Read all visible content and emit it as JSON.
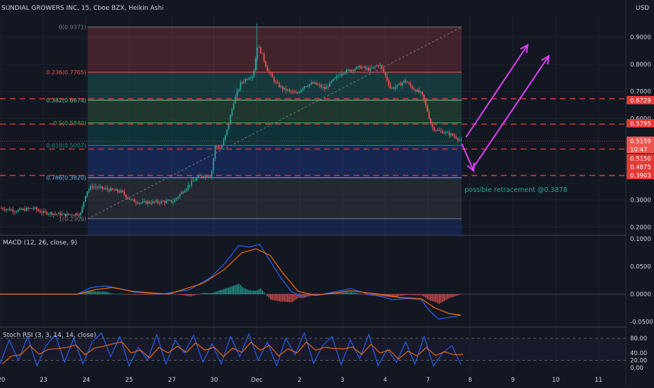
{
  "header": {
    "title": "SUNDIAL GROWERS INC, 15, Cboe BZX, Heikin Ashi",
    "currency": "USD"
  },
  "colors": {
    "background": "#131722",
    "grid": "#1e222d",
    "up": "#26a69a",
    "down": "#ef5350",
    "axis_text": "#d1d4dc",
    "arrow": "#e040fb",
    "dashed_line": "#e53935",
    "macd_line": "#2962ff",
    "signal_line": "#ff6d00",
    "stoch_k": "#2962ff",
    "stoch_d": "#ff6d00"
  },
  "chart_data": [
    {
      "type": "candlestick",
      "panel": "price",
      "price_axis": [
        0.9,
        0.8,
        0.7,
        0.6,
        0.3,
        0.2
      ],
      "date_axis": [
        "20",
        "23",
        "24",
        "25",
        "27",
        "30",
        "Dec",
        "2",
        "3",
        "4",
        "7",
        "8",
        "9",
        "10",
        "11"
      ],
      "fib_levels": [
        {
          "label": "0(0.9371)",
          "value": 0.9371
        },
        {
          "label": "0.236(0.7705)",
          "value": 0.7705
        },
        {
          "label": "0.382(0.6674)",
          "value": 0.6674
        },
        {
          "label": "0.5(0.5840)",
          "value": 0.584
        },
        {
          "label": "0.618(0.5007)",
          "value": 0.5007
        },
        {
          "label": "0.786(0.3820)",
          "value": 0.382
        },
        {
          "label": "1(0.2309)",
          "value": 0.2309
        }
      ],
      "price_tags": [
        {
          "text": "0.6729",
          "value": 0.6729
        },
        {
          "text": "0.5795",
          "value": 0.5795
        },
        {
          "text": "0.5159",
          "value": 0.5159
        },
        {
          "text": "10:47",
          "value": 0.5159
        },
        {
          "text": "0.5150",
          "value": 0.515
        },
        {
          "text": "0.4875",
          "value": 0.4875
        },
        {
          "text": "0.3903",
          "value": 0.3903
        }
      ],
      "annotation": "possible retracement @0.3878",
      "close_path": [
        [
          0,
          0.27
        ],
        [
          22,
          0.26
        ],
        [
          47,
          0.27
        ],
        [
          58,
          0.255
        ],
        [
          92,
          0.245
        ],
        [
          114,
          0.25
        ],
        [
          122,
          0.33
        ],
        [
          130,
          0.35
        ],
        [
          150,
          0.34
        ],
        [
          172,
          0.33
        ],
        [
          185,
          0.3
        ],
        [
          200,
          0.29
        ],
        [
          246,
          0.295
        ],
        [
          270,
          0.36
        ],
        [
          285,
          0.39
        ],
        [
          300,
          0.39
        ],
        [
          306,
          0.5
        ],
        [
          314,
          0.49
        ],
        [
          322,
          0.55
        ],
        [
          332,
          0.66
        ],
        [
          342,
          0.73
        ],
        [
          352,
          0.75
        ],
        [
          360,
          0.76
        ],
        [
          366,
          0.87
        ],
        [
          372,
          0.84
        ],
        [
          380,
          0.78
        ],
        [
          392,
          0.73
        ],
        [
          402,
          0.71
        ],
        [
          412,
          0.7
        ],
        [
          422,
          0.69
        ],
        [
          432,
          0.72
        ],
        [
          446,
          0.73
        ],
        [
          462,
          0.71
        ],
        [
          474,
          0.74
        ],
        [
          486,
          0.77
        ],
        [
          500,
          0.78
        ],
        [
          512,
          0.79
        ],
        [
          526,
          0.78
        ],
        [
          540,
          0.8
        ],
        [
          548,
          0.76
        ],
        [
          556,
          0.71
        ],
        [
          566,
          0.72
        ],
        [
          576,
          0.74
        ],
        [
          588,
          0.71
        ],
        [
          600,
          0.69
        ],
        [
          608,
          0.63
        ],
        [
          614,
          0.57
        ],
        [
          622,
          0.555
        ],
        [
          632,
          0.55
        ],
        [
          642,
          0.54
        ],
        [
          650,
          0.53
        ],
        [
          657,
          0.5159
        ]
      ]
    },
    {
      "type": "line",
      "panel": "macd",
      "title": "MACD (12, 26, close, 9)",
      "axis": [
        0.1,
        0.05,
        0.0,
        -0.05
      ],
      "axis_labels": [
        "0.1000",
        "0.0500",
        "0.0000",
        "-0.0500"
      ],
      "macd": [
        [
          0,
          0.0
        ],
        [
          60,
          0.0
        ],
        [
          110,
          0.0
        ],
        [
          130,
          0.012
        ],
        [
          150,
          0.015
        ],
        [
          170,
          0.01
        ],
        [
          190,
          0.004
        ],
        [
          230,
          0.0
        ],
        [
          270,
          0.008
        ],
        [
          300,
          0.03
        ],
        [
          320,
          0.055
        ],
        [
          340,
          0.088
        ],
        [
          355,
          0.085
        ],
        [
          370,
          0.09
        ],
        [
          385,
          0.06
        ],
        [
          400,
          0.03
        ],
        [
          415,
          0.005
        ],
        [
          430,
          -0.004
        ],
        [
          460,
          0.0
        ],
        [
          500,
          0.01
        ],
        [
          525,
          0.0
        ],
        [
          545,
          -0.005
        ],
        [
          560,
          -0.01
        ],
        [
          580,
          -0.008
        ],
        [
          600,
          -0.01
        ],
        [
          612,
          -0.03
        ],
        [
          625,
          -0.045
        ],
        [
          640,
          -0.042
        ],
        [
          657,
          -0.038
        ]
      ],
      "signal": [
        [
          0,
          0.0
        ],
        [
          110,
          0.0
        ],
        [
          135,
          0.008
        ],
        [
          160,
          0.012
        ],
        [
          190,
          0.005
        ],
        [
          240,
          0.0
        ],
        [
          290,
          0.02
        ],
        [
          320,
          0.045
        ],
        [
          345,
          0.075
        ],
        [
          365,
          0.082
        ],
        [
          385,
          0.07
        ],
        [
          405,
          0.035
        ],
        [
          425,
          0.005
        ],
        [
          450,
          -0.002
        ],
        [
          500,
          0.006
        ],
        [
          540,
          0.0
        ],
        [
          570,
          -0.006
        ],
        [
          600,
          -0.008
        ],
        [
          620,
          -0.025
        ],
        [
          640,
          -0.035
        ],
        [
          657,
          -0.038
        ]
      ]
    },
    {
      "type": "line",
      "panel": "stoch_rsi",
      "title": "Stoch RSI (3, 3, 14, 14, close)",
      "axis": [
        80,
        40,
        20,
        0
      ],
      "axis_labels": [
        "80.00",
        "40.00",
        "20.00",
        "0.00"
      ],
      "k_values": [
        10,
        75,
        20,
        85,
        5,
        60,
        90,
        15,
        80,
        10,
        70,
        95,
        30,
        85,
        5,
        55,
        20,
        90,
        10,
        75,
        40,
        88,
        15,
        65,
        10,
        85,
        30,
        92,
        20,
        70,
        5,
        80,
        35,
        95,
        12,
        60,
        85,
        8,
        75,
        25,
        90,
        5,
        50,
        15,
        70,
        10,
        85,
        5,
        40,
        60,
        8
      ]
    }
  ]
}
